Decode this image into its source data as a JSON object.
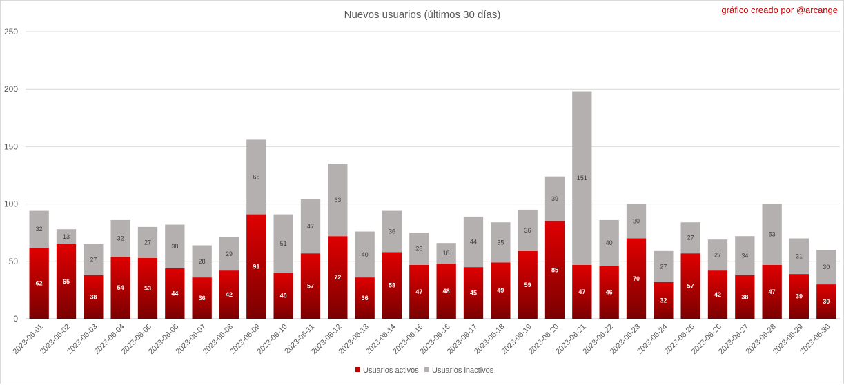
{
  "chart_data": {
    "type": "bar",
    "stacked": true,
    "title": "Nuevos usuarios (últimos 30 días)",
    "credit": "gráfico creado por @arcange",
    "xlabel": "",
    "ylabel": "",
    "ylim": [
      0,
      250
    ],
    "yticks": [
      0,
      50,
      100,
      150,
      200,
      250
    ],
    "grid": true,
    "legend_position": "bottom",
    "categories": [
      "2023-06-01",
      "2023-06-02",
      "2023-06-03",
      "2023-06-04",
      "2023-06-05",
      "2023-06-06",
      "2023-06-07",
      "2023-06-08",
      "2023-06-09",
      "2023-06-10",
      "2023-06-11",
      "2023-06-12",
      "2023-06-13",
      "2023-06-14",
      "2023-06-15",
      "2023-06-16",
      "2023-06-17",
      "2023-06-18",
      "2023-06-19",
      "2023-06-20",
      "2023-06-21",
      "2023-06-22",
      "2023-06-23",
      "2023-06-24",
      "2023-06-25",
      "2023-06-26",
      "2023-06-27",
      "2023-06-28",
      "2023-06-29",
      "2023-06-30"
    ],
    "series": [
      {
        "name": "Usuarios activos",
        "color": "#c00000",
        "values": [
          62,
          65,
          38,
          54,
          53,
          44,
          36,
          42,
          91,
          40,
          57,
          72,
          36,
          58,
          47,
          48,
          45,
          49,
          59,
          85,
          47,
          46,
          70,
          32,
          57,
          42,
          38,
          47,
          39,
          30
        ]
      },
      {
        "name": "Usuarios inactivos",
        "color": "#b4b0b0",
        "values": [
          32,
          13,
          27,
          32,
          27,
          38,
          28,
          29,
          65,
          51,
          47,
          63,
          40,
          36,
          28,
          18,
          44,
          35,
          36,
          39,
          151,
          40,
          30,
          27,
          27,
          27,
          34,
          53,
          31,
          30
        ]
      }
    ]
  }
}
